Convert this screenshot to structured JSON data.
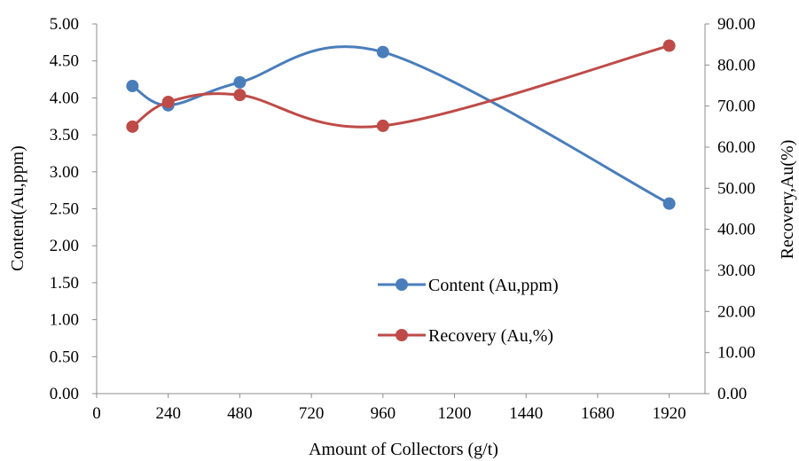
{
  "chart_data": {
    "type": "line",
    "title": "",
    "xlabel": "Amount of Collectors (g/t)",
    "ylabel": "Content(Au,ppm)",
    "y2label": "Recovery,Au(%)",
    "xlim": [
      0,
      2040
    ],
    "ylim": [
      0,
      5
    ],
    "y2lim": [
      0,
      90
    ],
    "x_ticks": [
      0,
      240,
      480,
      720,
      960,
      1200,
      1440,
      1680,
      1920
    ],
    "x_tick_labels": [
      "0",
      "240",
      "480",
      "720",
      "960",
      "1200",
      "1440",
      "1680",
      "1920"
    ],
    "y_ticks": [
      0,
      0.5,
      1,
      1.5,
      2,
      2.5,
      3,
      3.5,
      4,
      4.5,
      5
    ],
    "y_tick_labels": [
      "0.00",
      "0.50",
      "1.00",
      "1.50",
      "2.00",
      "2.50",
      "3.00",
      "3.50",
      "4.00",
      "4.50",
      "5.00"
    ],
    "y2_ticks": [
      0,
      10,
      20,
      30,
      40,
      50,
      60,
      70,
      80,
      90
    ],
    "y2_tick_labels": [
      "0.00",
      "10.00",
      "20.00",
      "30.00",
      "40.00",
      "50.00",
      "60.00",
      "70.00",
      "80.00",
      "90.00"
    ],
    "grid": false,
    "smooth": true,
    "legend_position": "center-right",
    "series": [
      {
        "name": "Content (Au,ppm)",
        "axis": "left",
        "color": "#4a7ebb",
        "x": [
          120,
          240,
          480,
          960,
          1920
        ],
        "values": [
          4.16,
          3.9,
          4.21,
          4.62,
          2.57
        ]
      },
      {
        "name": "Recovery (Au,%)",
        "axis": "right",
        "color": "#be4b48",
        "x": [
          120,
          240,
          480,
          960,
          1920
        ],
        "values": [
          65.0,
          71.0,
          72.7,
          65.2,
          84.7
        ]
      }
    ]
  }
}
